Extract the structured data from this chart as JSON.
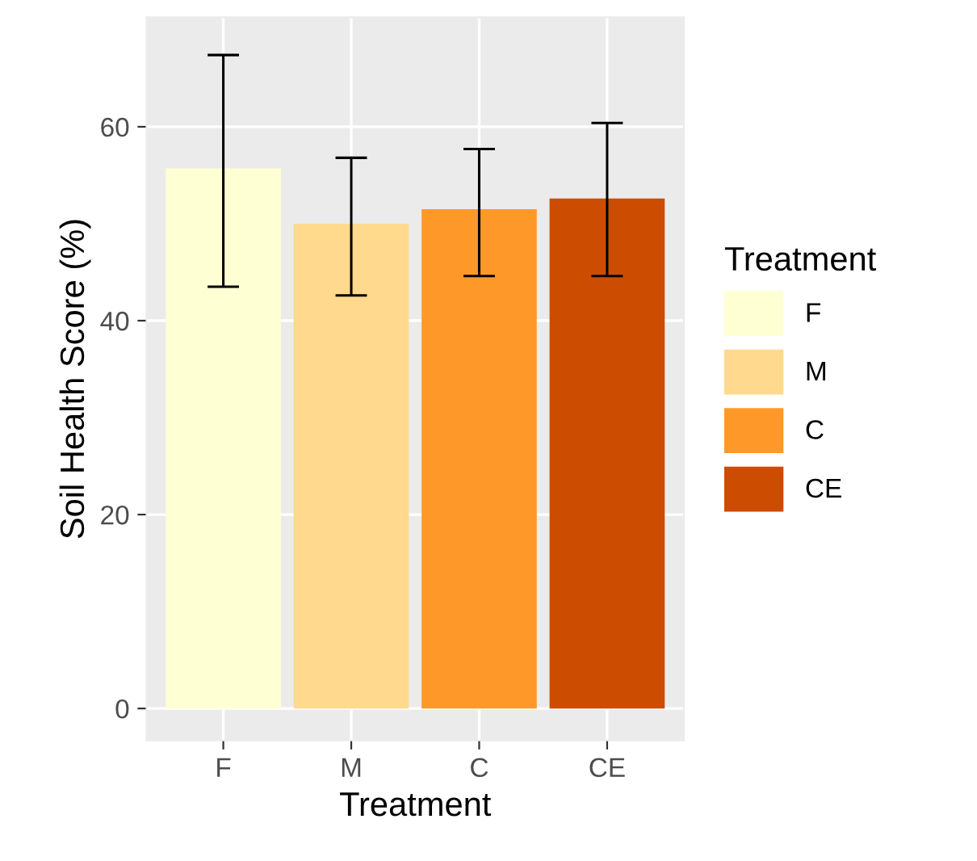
{
  "chart_data": {
    "type": "bar",
    "xlabel": "Treatment",
    "ylabel": "Soil Health Score (%)",
    "legend_title": "Treatment",
    "categories": [
      "F",
      "M",
      "C",
      "CE"
    ],
    "series": [
      {
        "name": "F",
        "color": "#ffffd4",
        "values": [
          55.7,
          null,
          null,
          null
        ],
        "errors": [
          [
            43.5,
            67.4
          ],
          null,
          null,
          null
        ]
      },
      {
        "name": "M",
        "color": "#fed98e",
        "values": [
          null,
          50.0,
          null,
          null
        ],
        "errors": [
          null,
          [
            42.6,
            56.8
          ],
          null,
          null
        ]
      },
      {
        "name": "C",
        "color": "#fe9929",
        "values": [
          null,
          null,
          51.5,
          null
        ],
        "errors": [
          null,
          null,
          [
            44.6,
            57.7
          ],
          null
        ]
      },
      {
        "name": "CE",
        "color": "#cc4c02",
        "values": [
          null,
          null,
          null,
          52.6
        ],
        "errors": [
          null,
          null,
          null,
          [
            44.6,
            60.4
          ]
        ]
      }
    ],
    "ylim": [
      -3.3,
      71.3
    ],
    "yticks": [
      0,
      20,
      40,
      60
    ],
    "grid": true,
    "legend": "right"
  }
}
